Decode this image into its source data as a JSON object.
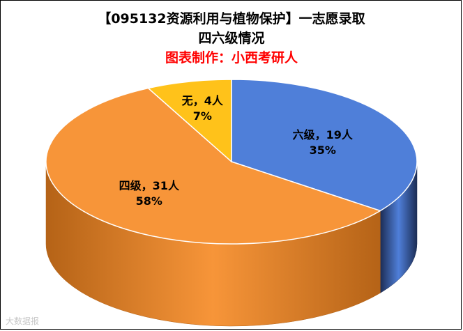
{
  "chart_data": {
    "type": "pie",
    "title": "【095132资源利用与植物保护】一志愿录取",
    "subtitle": "四六级情况",
    "credit": "图表制作：小西考研人",
    "slices": [
      {
        "label": "六级",
        "count": 19,
        "unit": "人",
        "percent": "35%",
        "color": "#4f7fd9",
        "side_color": "#1c2d55"
      },
      {
        "label": "四级",
        "count": 31,
        "unit": "人",
        "percent": "58%",
        "color": "#f79539",
        "side_color": "#b56317"
      },
      {
        "label": "无",
        "count": 4,
        "unit": "人",
        "percent": "7%",
        "color": "#ffc21a",
        "side_color": "#c58f00"
      }
    ]
  },
  "watermark": "大数据报"
}
